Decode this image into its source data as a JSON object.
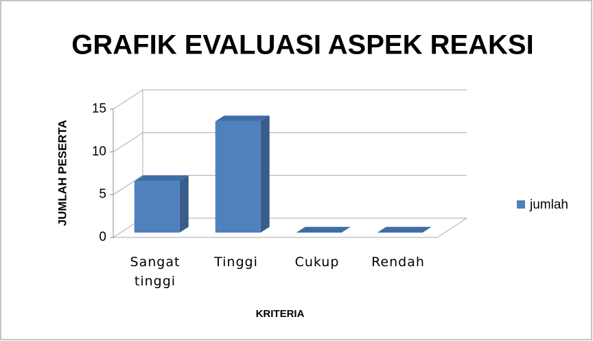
{
  "chart_data": {
    "type": "bar",
    "title": "GRAFIK EVALUASI ASPEK REAKSI",
    "x_label": "KRITERIA",
    "y_label": "JUMLAH  PESERTA",
    "categories": [
      "Sangat tinggi",
      "Tinggi",
      "Cukup",
      "Rendah"
    ],
    "series": [
      {
        "name": "jumlah",
        "color": "#4f81bd",
        "values": [
          6,
          13,
          0,
          0
        ]
      }
    ],
    "ylim": [
      0,
      15
    ],
    "yticks": [
      0,
      5,
      10,
      15
    ],
    "grid": true,
    "legend": "right"
  }
}
